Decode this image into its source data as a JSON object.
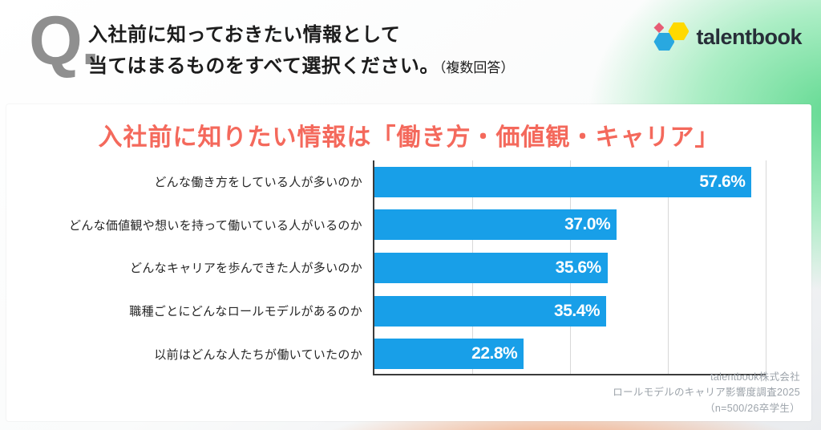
{
  "header": {
    "q_mark": "Q.",
    "question_line1": "入社前に知っておきたい情報として",
    "question_line2": "当てはまるものをすべて選択ください。",
    "question_note": "（複数回答）",
    "logo_text": "talentbook"
  },
  "card": {
    "title": "入社前に知りたい情報は「働き方・価値観・キャリア」"
  },
  "chart_data": {
    "type": "bar",
    "orientation": "horizontal",
    "title": "入社前に知りたい情報は「働き方・価値観・キャリア」",
    "categories": [
      "どんな働き方をしている人が多いのか",
      "どんな価値観や想いを持って働いている人がいるのか",
      "どんなキャリアを歩んできた人が多いのか",
      "職種ごとにどんなロールモデルがあるのか",
      "以前はどんな人たちが働いていたのか"
    ],
    "values": [
      57.6,
      37.0,
      35.6,
      35.4,
      22.8
    ],
    "value_labels": [
      "57.6%",
      "37.0%",
      "35.6%",
      "35.4%",
      "22.8%"
    ],
    "xlabel": "",
    "ylabel": "",
    "xlim": [
      0,
      60
    ],
    "gridlines": [
      15,
      30,
      45,
      60
    ],
    "grid": "vertical-only",
    "legend_position": "none",
    "bar_color": "#189FE8",
    "value_label_color": "#FFFFFF"
  },
  "footer": {
    "lines": [
      "talentbook株式会社",
      "ロールモデルのキャリア影響度調査2025",
      "（n=500/26卒学生）"
    ]
  },
  "colors": {
    "title_accent": "#F4695C",
    "bar_blue": "#189FE8",
    "background_green": "#5AD88C",
    "background_orange": "#F4965F",
    "logo_blue": "#29A8E0",
    "logo_yellow": "#FFD900",
    "logo_red": "#E75D75",
    "q_mark_gray": "#8F8F8F"
  }
}
